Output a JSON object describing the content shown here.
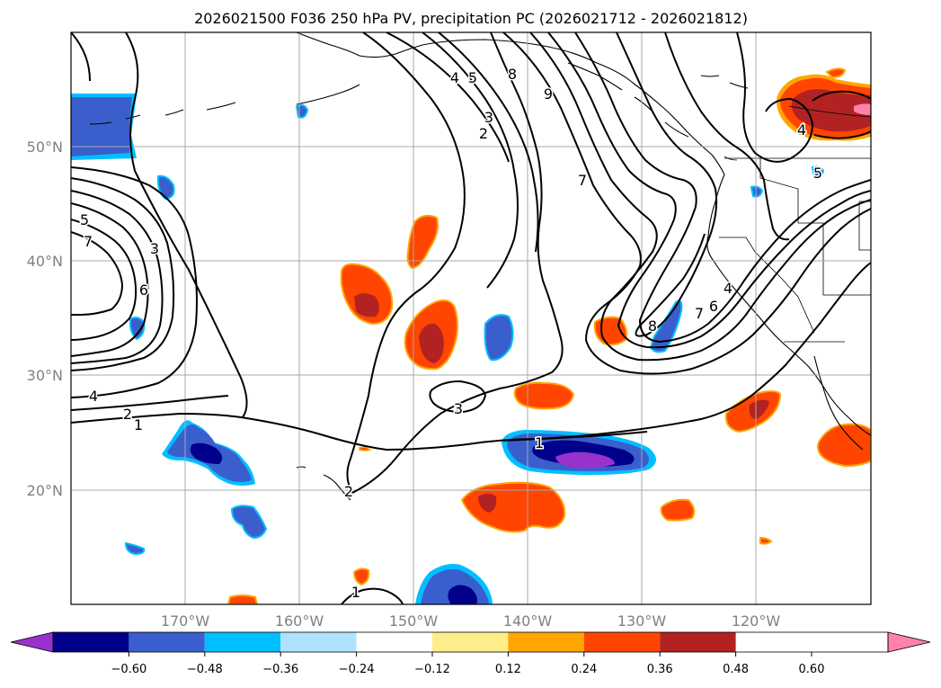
{
  "title": "2026021500 F036 250 hPa PV, precipitation PC (2026021712 - 2026021812)",
  "latitude_labels": [
    "50°N",
    "40°N",
    "30°N",
    "20°N"
  ],
  "longitude_labels": [
    "170°W",
    "160°W",
    "150°W",
    "140°W",
    "130°W",
    "120°W"
  ],
  "colorbar": {
    "ticks": [
      "−0.60",
      "−0.48",
      "−0.36",
      "−0.24",
      "−0.12",
      "0.12",
      "0.24",
      "0.36",
      "0.48",
      "0.60"
    ],
    "colors": [
      "#9932CC",
      "#00008B",
      "#3A5FCD",
      "#00BFFF",
      "#B0E2FF",
      "#FFFFFF",
      "#FFEC8B",
      "#FFA500",
      "#FF4500",
      "#B22222",
      "#FF82AB"
    ]
  },
  "pv_contour_labels": [
    "5",
    "7",
    "3",
    "6",
    "4",
    "2",
    "1",
    "4",
    "5",
    "8",
    "9",
    "3",
    "2",
    "7",
    "8",
    "7",
    "6",
    "4",
    "3",
    "1",
    "1",
    "2",
    "4",
    "5"
  ]
}
